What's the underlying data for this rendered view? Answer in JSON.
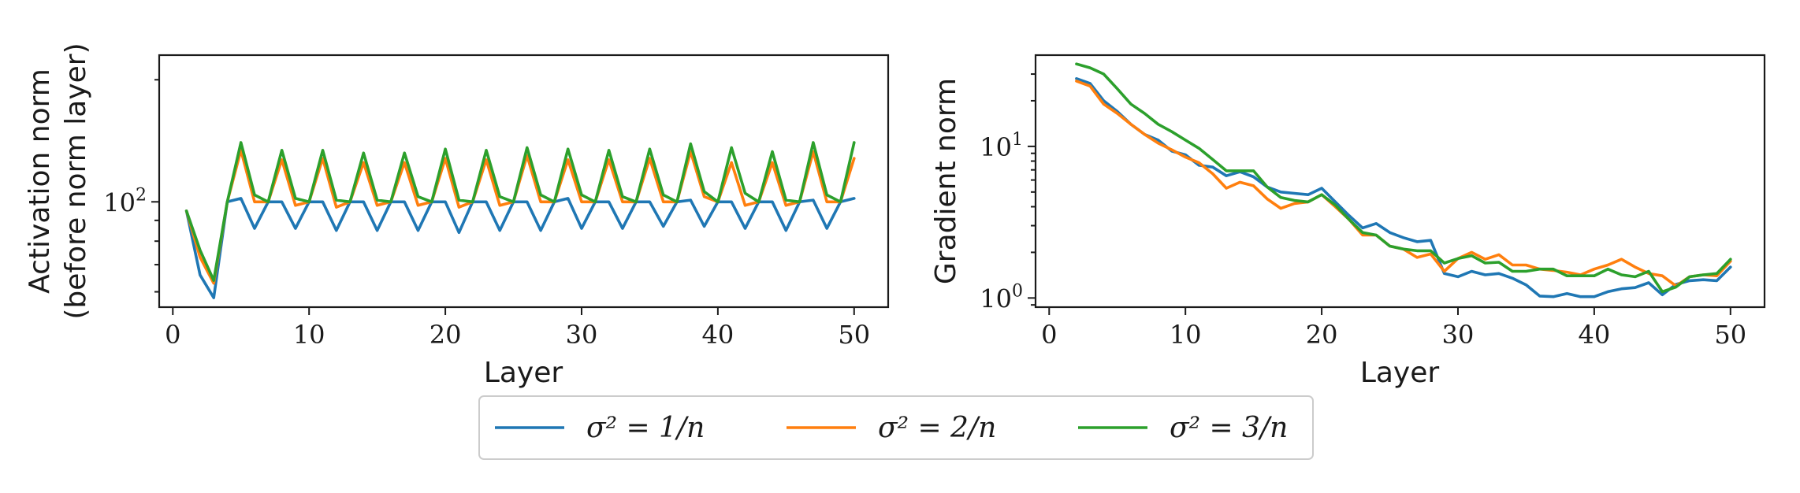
{
  "chart_data": [
    {
      "type": "line",
      "xlabel": "Layer",
      "ylabel": [
        "Activation norm",
        "(before norm layer)"
      ],
      "yscale": "log",
      "xlim": [
        -1,
        52.5
      ],
      "ylim": [
        55,
        230
      ],
      "xticks": [
        0,
        10,
        20,
        30,
        40,
        50
      ],
      "yticks": [
        {
          "value": 100,
          "base": "10",
          "exp": "2"
        }
      ],
      "grid": false,
      "series": [
        {
          "name": "σ² = 1/n",
          "color": "#1f77b4",
          "x": [
            1,
            2,
            3,
            4,
            5,
            6,
            7,
            8,
            9,
            10,
            11,
            12,
            13,
            14,
            15,
            16,
            17,
            18,
            19,
            20,
            21,
            22,
            23,
            24,
            25,
            26,
            27,
            28,
            29,
            30,
            31,
            32,
            33,
            34,
            35,
            36,
            37,
            38,
            39,
            40,
            41,
            42,
            43,
            44,
            45,
            46,
            47,
            48,
            49,
            50
          ],
          "values": [
            95,
            66,
            58,
            100,
            102,
            86,
            100,
            100,
            86,
            100,
            100,
            85,
            100,
            100,
            85,
            100,
            100,
            85,
            100,
            100,
            84,
            100,
            100,
            85,
            100,
            100,
            85,
            100,
            102,
            86,
            100,
            100,
            86,
            100,
            100,
            87,
            100,
            101,
            87,
            100,
            100,
            86,
            100,
            100,
            85,
            100,
            101,
            86,
            100,
            102
          ]
        },
        {
          "name": "σ² = 2/n",
          "color": "#ff7f0e",
          "x": [
            1,
            2,
            3,
            4,
            5,
            6,
            7,
            8,
            9,
            10,
            11,
            12,
            13,
            14,
            15,
            16,
            17,
            18,
            19,
            20,
            21,
            22,
            23,
            24,
            25,
            26,
            27,
            28,
            29,
            30,
            31,
            32,
            33,
            34,
            35,
            36,
            37,
            38,
            39,
            40,
            41,
            42,
            43,
            44,
            45,
            46,
            47,
            48,
            49,
            50
          ],
          "values": [
            95,
            73,
            63,
            100,
            134,
            100,
            100,
            127,
            98,
            100,
            128,
            97,
            100,
            125,
            98,
            100,
            125,
            98,
            100,
            128,
            97,
            100,
            127,
            98,
            100,
            130,
            100,
            100,
            127,
            100,
            100,
            127,
            100,
            100,
            128,
            100,
            100,
            133,
            103,
            100,
            125,
            98,
            100,
            125,
            98,
            100,
            133,
            100,
            100,
            128
          ]
        },
        {
          "name": "σ² = 3/n",
          "color": "#2ca02c",
          "x": [
            1,
            2,
            3,
            4,
            5,
            6,
            7,
            8,
            9,
            10,
            11,
            12,
            13,
            14,
            15,
            16,
            17,
            18,
            19,
            20,
            21,
            22,
            23,
            24,
            25,
            26,
            27,
            28,
            29,
            30,
            31,
            32,
            33,
            34,
            35,
            36,
            37,
            38,
            39,
            40,
            41,
            42,
            43,
            44,
            45,
            46,
            47,
            48,
            49,
            50
          ],
          "values": [
            95,
            76,
            64,
            100,
            140,
            104,
            100,
            134,
            102,
            100,
            134,
            101,
            100,
            132,
            101,
            100,
            132,
            103,
            100,
            135,
            101,
            100,
            134,
            103,
            100,
            136,
            104,
            100,
            135,
            104,
            100,
            134,
            103,
            100,
            135,
            104,
            100,
            139,
            106,
            100,
            136,
            105,
            100,
            133,
            101,
            100,
            140,
            104,
            100,
            140
          ]
        }
      ]
    },
    {
      "type": "line",
      "xlabel": "Layer",
      "ylabel": [
        "Gradient norm"
      ],
      "yscale": "log",
      "xlim": [
        -1,
        52.5
      ],
      "ylim": [
        0.87,
        40
      ],
      "xticks": [
        0,
        10,
        20,
        30,
        40,
        50
      ],
      "yticks": [
        {
          "value": 1,
          "base": "10",
          "exp": "0"
        },
        {
          "value": 10,
          "base": "10",
          "exp": "1"
        }
      ],
      "grid": false,
      "series": [
        {
          "name": "σ² = 1/n",
          "color": "#1f77b4",
          "x": [
            2,
            3,
            4,
            5,
            6,
            7,
            8,
            9,
            10,
            11,
            12,
            13,
            14,
            15,
            16,
            17,
            18,
            19,
            20,
            21,
            22,
            23,
            24,
            25,
            26,
            27,
            28,
            29,
            30,
            31,
            32,
            33,
            34,
            35,
            36,
            37,
            38,
            39,
            40,
            41,
            42,
            43,
            44,
            45,
            46,
            47,
            48,
            49,
            50
          ],
          "values": [
            28,
            26,
            20,
            17,
            14,
            12,
            11,
            9.3,
            8.8,
            7.5,
            7.3,
            6.4,
            6.8,
            6.3,
            5.4,
            5.0,
            4.9,
            4.8,
            5.3,
            4.3,
            3.5,
            2.9,
            3.1,
            2.7,
            2.5,
            2.35,
            2.4,
            1.45,
            1.38,
            1.5,
            1.42,
            1.45,
            1.35,
            1.22,
            1.03,
            1.02,
            1.07,
            1.02,
            1.02,
            1.1,
            1.15,
            1.17,
            1.26,
            1.05,
            1.23,
            1.3,
            1.32,
            1.3,
            1.6
          ]
        },
        {
          "name": "σ² = 2/n",
          "color": "#ff7f0e",
          "x": [
            2,
            3,
            4,
            5,
            6,
            7,
            8,
            9,
            10,
            11,
            12,
            13,
            14,
            15,
            16,
            17,
            18,
            19,
            20,
            21,
            22,
            23,
            24,
            25,
            26,
            27,
            28,
            29,
            30,
            31,
            32,
            33,
            34,
            35,
            36,
            37,
            38,
            39,
            40,
            41,
            42,
            43,
            44,
            45,
            46,
            47,
            48,
            49,
            50
          ],
          "values": [
            27,
            25,
            19,
            16.5,
            14,
            12,
            10.5,
            9.5,
            8.5,
            7.8,
            6.6,
            5.3,
            5.8,
            5.5,
            4.5,
            3.9,
            4.2,
            4.3,
            4.8,
            4.0,
            3.3,
            2.6,
            2.6,
            2.2,
            2.1,
            1.85,
            1.95,
            1.5,
            1.82,
            2.0,
            1.8,
            1.93,
            1.65,
            1.65,
            1.55,
            1.52,
            1.48,
            1.42,
            1.55,
            1.65,
            1.8,
            1.6,
            1.45,
            1.4,
            1.2,
            1.38,
            1.42,
            1.4,
            1.75
          ]
        },
        {
          "name": "σ² = 3/n",
          "color": "#2ca02c",
          "x": [
            2,
            3,
            4,
            5,
            6,
            7,
            8,
            9,
            10,
            11,
            12,
            13,
            14,
            15,
            16,
            17,
            18,
            19,
            20,
            21,
            22,
            23,
            24,
            25,
            26,
            27,
            28,
            29,
            30,
            31,
            32,
            33,
            34,
            35,
            36,
            37,
            38,
            39,
            40,
            41,
            42,
            43,
            44,
            45,
            46,
            47,
            48,
            49,
            50
          ],
          "values": [
            35,
            33,
            30,
            24,
            19,
            16.5,
            14,
            12.5,
            11,
            9.7,
            8.2,
            6.9,
            6.9,
            6.9,
            5.4,
            4.6,
            4.4,
            4.3,
            4.8,
            4.1,
            3.3,
            2.7,
            2.6,
            2.2,
            2.1,
            2.05,
            2.05,
            1.7,
            1.82,
            1.9,
            1.7,
            1.72,
            1.5,
            1.5,
            1.55,
            1.55,
            1.4,
            1.4,
            1.4,
            1.55,
            1.42,
            1.38,
            1.5,
            1.1,
            1.18,
            1.38,
            1.42,
            1.45,
            1.8
          ]
        }
      ]
    }
  ],
  "legend": {
    "placement": "bottom-center",
    "entries": [
      {
        "label": "σ² = 1/n",
        "color": "#1f77b4"
      },
      {
        "label": "σ² = 2/n",
        "color": "#ff7f0e"
      },
      {
        "label": "σ² = 3/n",
        "color": "#2ca02c"
      }
    ]
  }
}
